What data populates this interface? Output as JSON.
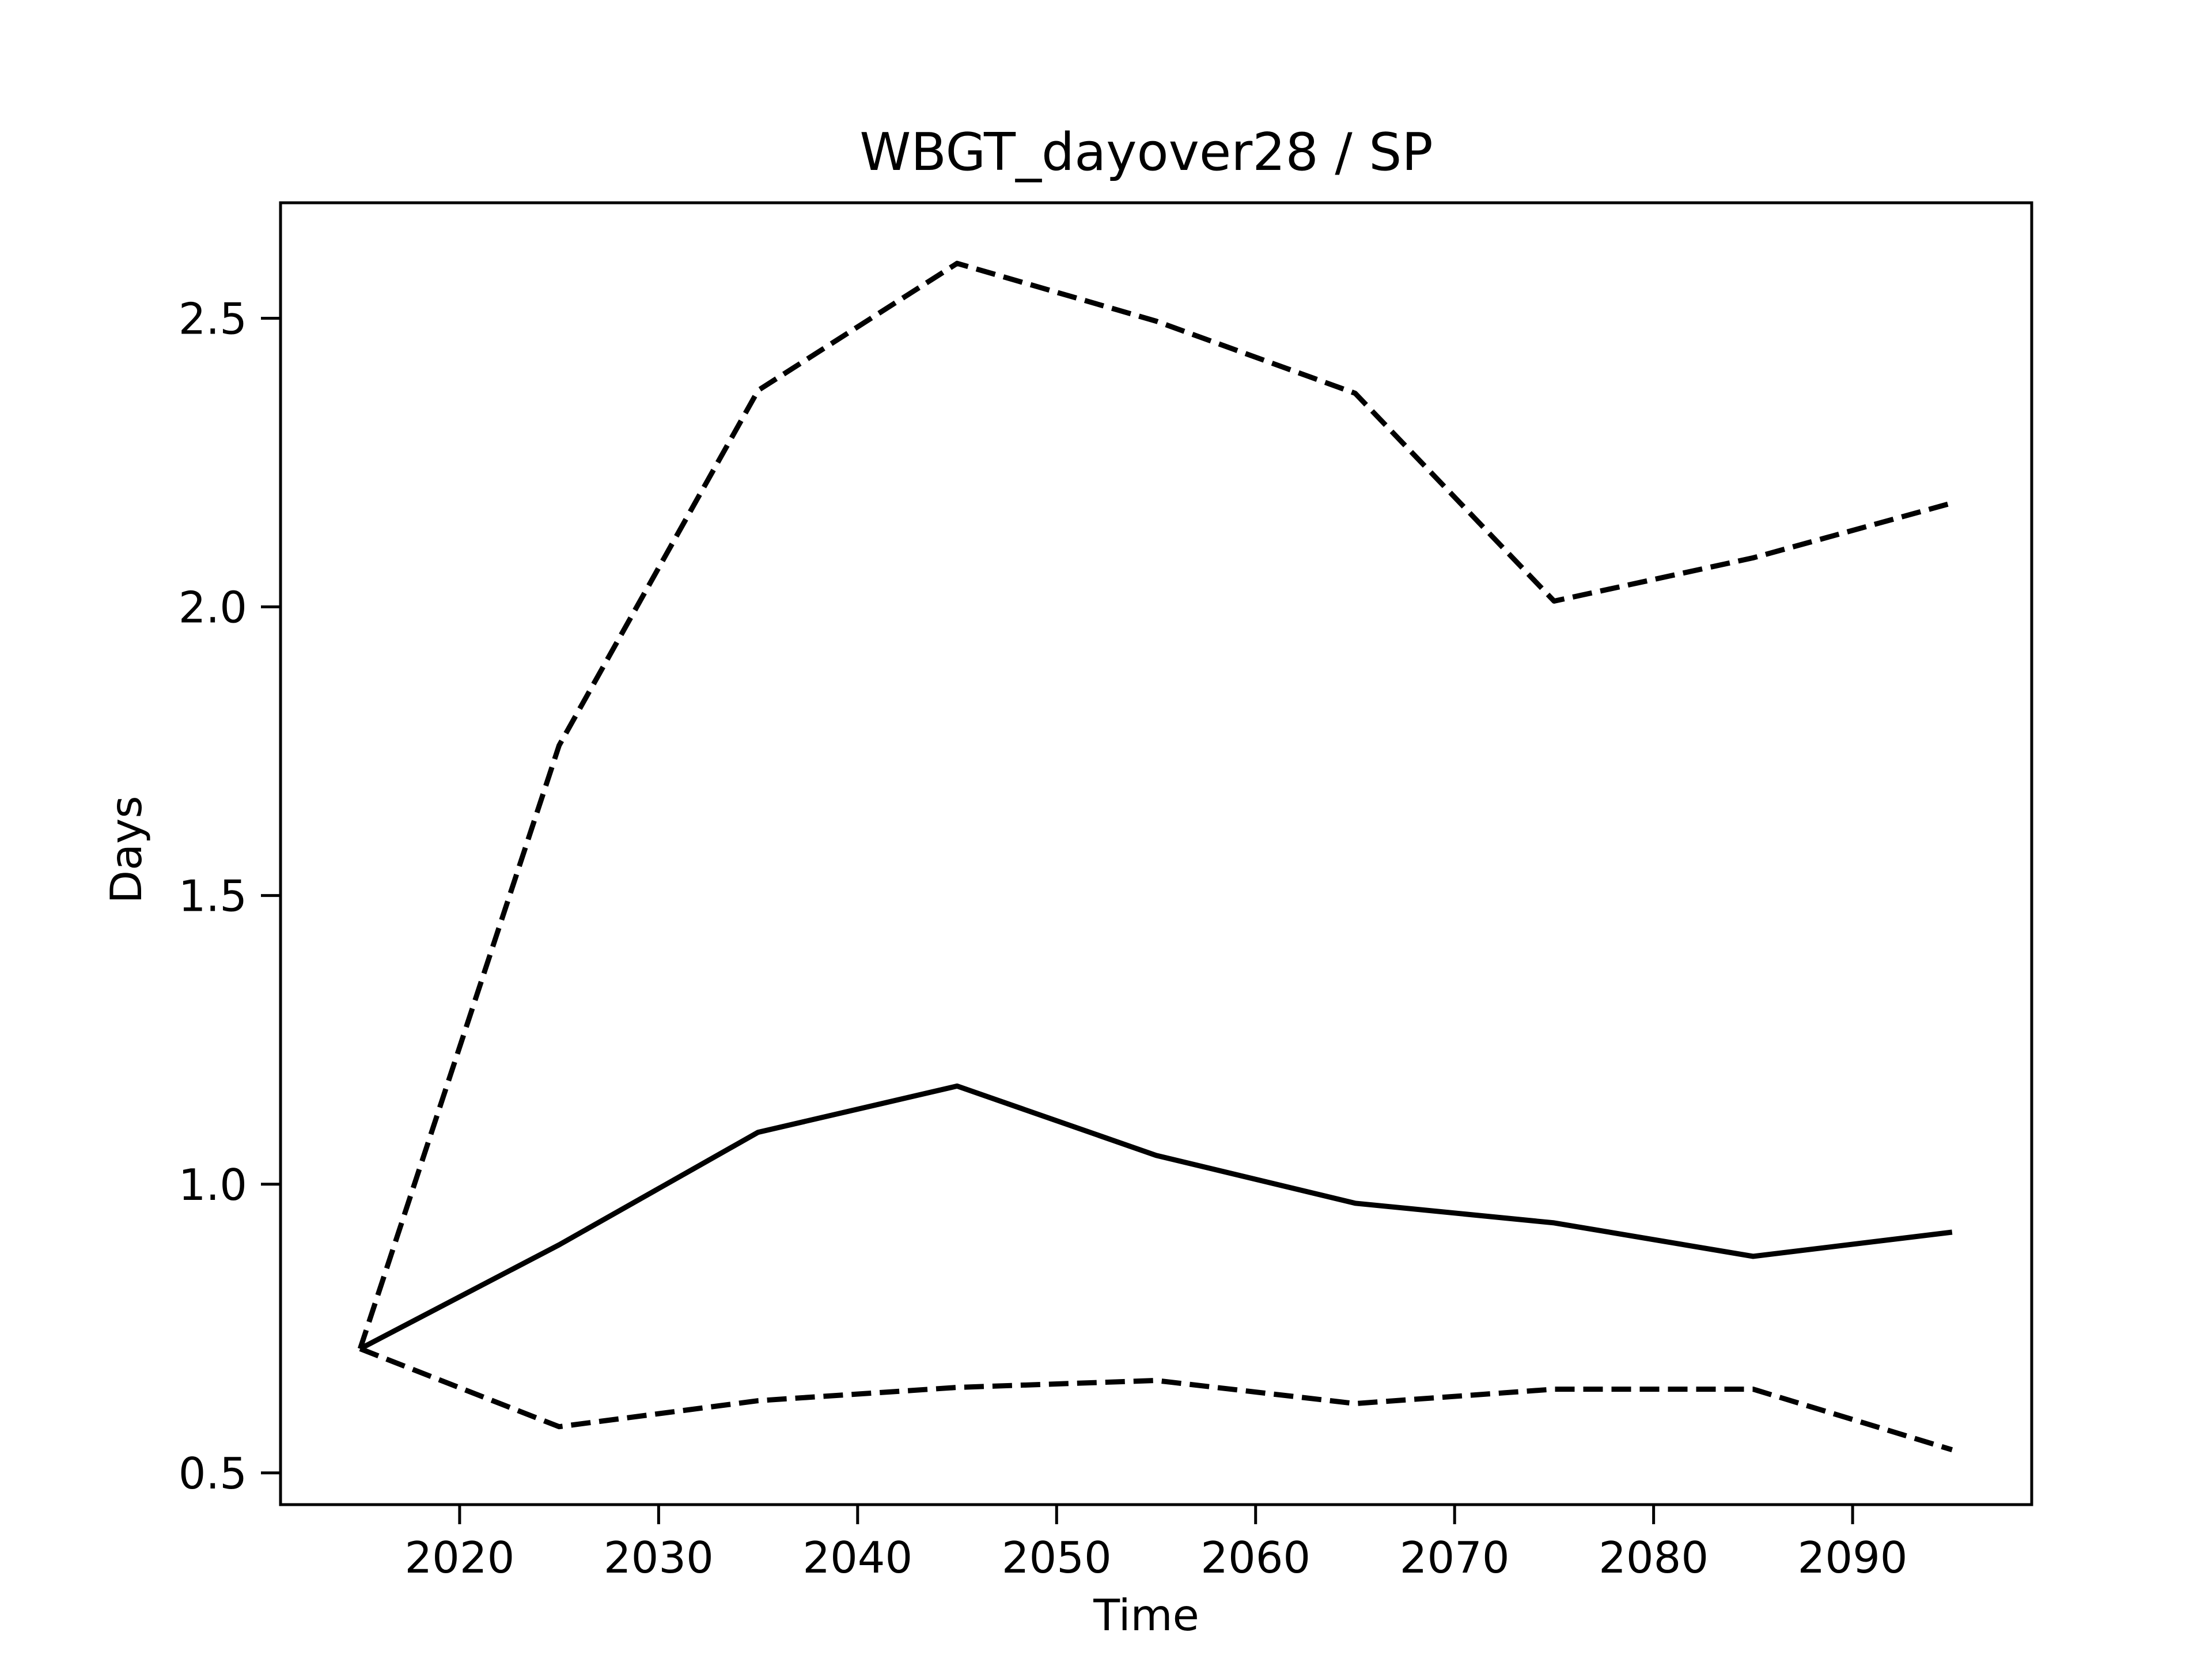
{
  "chart_data": {
    "type": "line",
    "title": "WBGT_dayover28 / SP",
    "xlabel": "Time",
    "ylabel": "Days",
    "xlim": [
      2011,
      2099
    ],
    "ylim": [
      0.445,
      2.7
    ],
    "x_ticks": [
      2020,
      2030,
      2040,
      2050,
      2060,
      2070,
      2080,
      2090
    ],
    "y_ticks": [
      0.5,
      1.0,
      1.5,
      2.0,
      2.5
    ],
    "x_tick_labels": [
      "2020",
      "2030",
      "2040",
      "2050",
      "2060",
      "2070",
      "2080",
      "2090"
    ],
    "y_tick_labels": [
      "0.5",
      "1.0",
      "1.5",
      "2.0",
      "2.5"
    ],
    "grid": false,
    "x": [
      2015,
      2025,
      2035,
      2045,
      2055,
      2065,
      2075,
      2085,
      2095
    ],
    "series": [
      {
        "style": "solid",
        "color": "#000000",
        "values": [
          0.715,
          0.895,
          1.09,
          1.17,
          1.05,
          0.967,
          0.933,
          0.875,
          0.917
        ]
      },
      {
        "style": "dashed",
        "color": "#000000",
        "values": [
          0.715,
          1.76,
          2.375,
          2.595,
          2.495,
          2.37,
          2.01,
          2.085,
          2.18
        ]
      },
      {
        "style": "dashed",
        "color": "#000000",
        "values": [
          0.715,
          0.58,
          0.625,
          0.648,
          0.66,
          0.62,
          0.645,
          0.645,
          0.54
        ]
      }
    ]
  }
}
